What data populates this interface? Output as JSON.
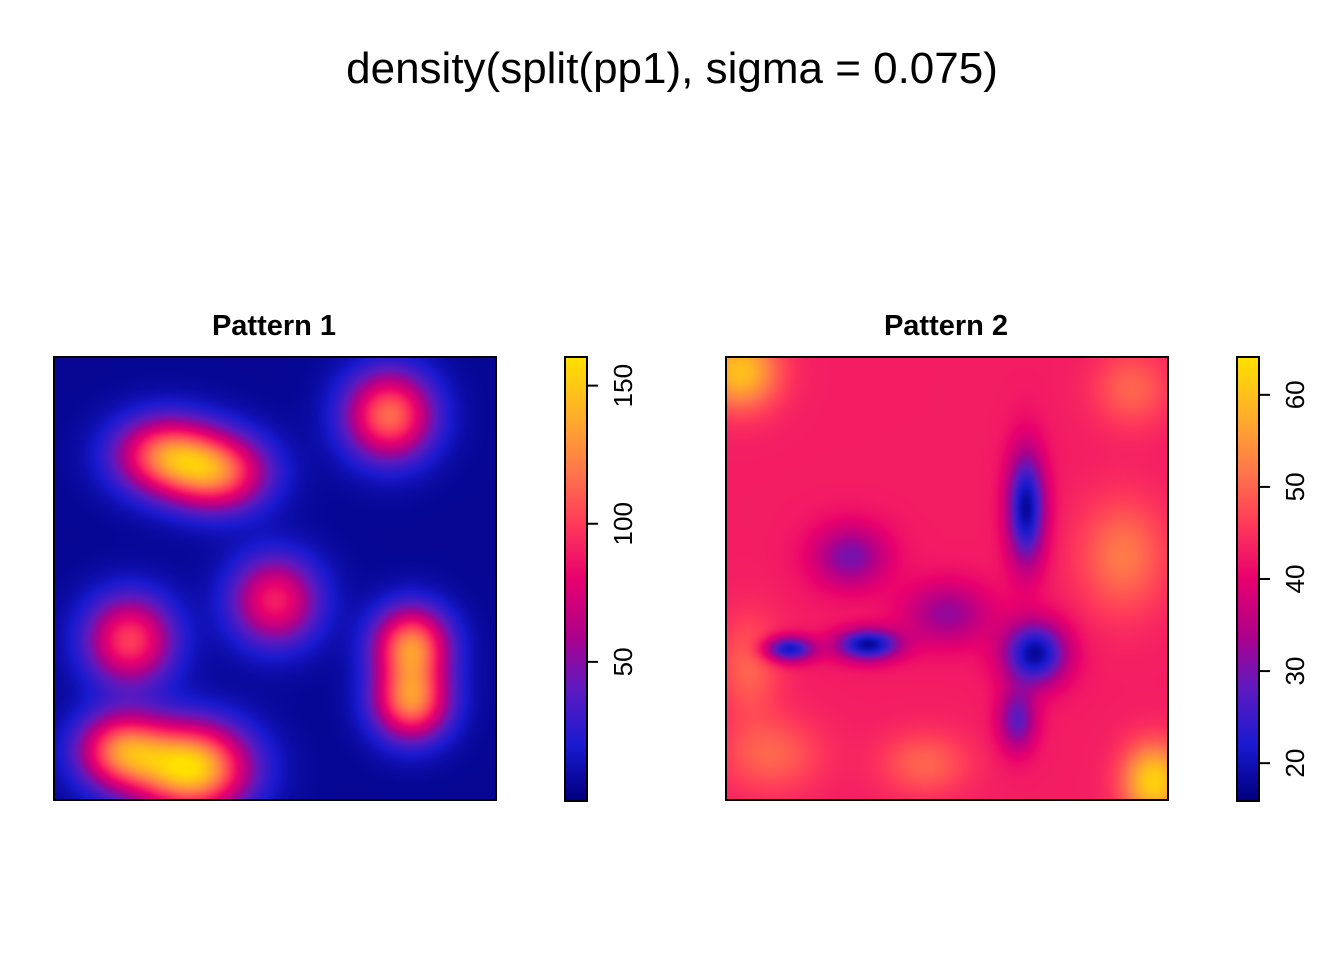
{
  "chart_data": {
    "type": "heatmap",
    "title": "density(split(pp1), sigma = 0.075)",
    "colors": [
      "#000080",
      "#1a1ad0",
      "#5c1ac0",
      "#b0008a",
      "#e8006e",
      "#ff3a5a",
      "#ff7a4a",
      "#ffb028",
      "#ffe000"
    ],
    "panels": [
      {
        "title": "Pattern 1",
        "range": [
          0,
          160
        ],
        "ticks": [
          50,
          100,
          150
        ],
        "background": 5,
        "hotspots": [
          {
            "x": 0.25,
            "y": 0.78,
            "value": 110,
            "sx": 0.08,
            "sy": 0.06
          },
          {
            "x": 0.37,
            "y": 0.74,
            "value": 110,
            "sx": 0.08,
            "sy": 0.06
          },
          {
            "x": 0.76,
            "y": 0.87,
            "value": 115,
            "sx": 0.07,
            "sy": 0.07
          },
          {
            "x": 0.5,
            "y": 0.45,
            "value": 90,
            "sx": 0.07,
            "sy": 0.07
          },
          {
            "x": 0.17,
            "y": 0.36,
            "value": 100,
            "sx": 0.07,
            "sy": 0.07
          },
          {
            "x": 0.81,
            "y": 0.35,
            "value": 120,
            "sx": 0.06,
            "sy": 0.06
          },
          {
            "x": 0.81,
            "y": 0.22,
            "value": 120,
            "sx": 0.06,
            "sy": 0.06
          },
          {
            "x": 0.31,
            "y": 0.07,
            "value": 155,
            "sx": 0.09,
            "sy": 0.07
          },
          {
            "x": 0.15,
            "y": 0.11,
            "value": 110,
            "sx": 0.07,
            "sy": 0.06
          }
        ]
      },
      {
        "title": "Pattern 2",
        "range": [
          16,
          64
        ],
        "ticks": [
          20,
          30,
          40,
          50,
          60
        ],
        "background": 43,
        "hotspots": [
          {
            "x": 0.03,
            "y": 0.97,
            "value": 60,
            "sx": 0.06,
            "sy": 0.06
          },
          {
            "x": 0.97,
            "y": 0.04,
            "value": 62,
            "sx": 0.05,
            "sy": 0.06
          },
          {
            "x": 0.9,
            "y": 0.55,
            "value": 52,
            "sx": 0.07,
            "sy": 0.09
          },
          {
            "x": 0.92,
            "y": 0.93,
            "value": 50,
            "sx": 0.06,
            "sy": 0.06
          },
          {
            "x": 0.1,
            "y": 0.1,
            "value": 50,
            "sx": 0.08,
            "sy": 0.06
          },
          {
            "x": 0.45,
            "y": 0.08,
            "value": 50,
            "sx": 0.07,
            "sy": 0.05
          },
          {
            "x": 0.05,
            "y": 0.3,
            "value": 50,
            "sx": 0.05,
            "sy": 0.08
          },
          {
            "x": 0.68,
            "y": 0.66,
            "value": 18,
            "sx": 0.03,
            "sy": 0.09
          },
          {
            "x": 0.7,
            "y": 0.33,
            "value": 18,
            "sx": 0.05,
            "sy": 0.05
          },
          {
            "x": 0.32,
            "y": 0.35,
            "value": 18,
            "sx": 0.05,
            "sy": 0.025
          },
          {
            "x": 0.14,
            "y": 0.34,
            "value": 20,
            "sx": 0.04,
            "sy": 0.02
          },
          {
            "x": 0.5,
            "y": 0.42,
            "value": 32,
            "sx": 0.07,
            "sy": 0.05
          },
          {
            "x": 0.28,
            "y": 0.55,
            "value": 30,
            "sx": 0.06,
            "sy": 0.05
          },
          {
            "x": 0.66,
            "y": 0.18,
            "value": 28,
            "sx": 0.03,
            "sy": 0.05
          }
        ]
      }
    ]
  }
}
